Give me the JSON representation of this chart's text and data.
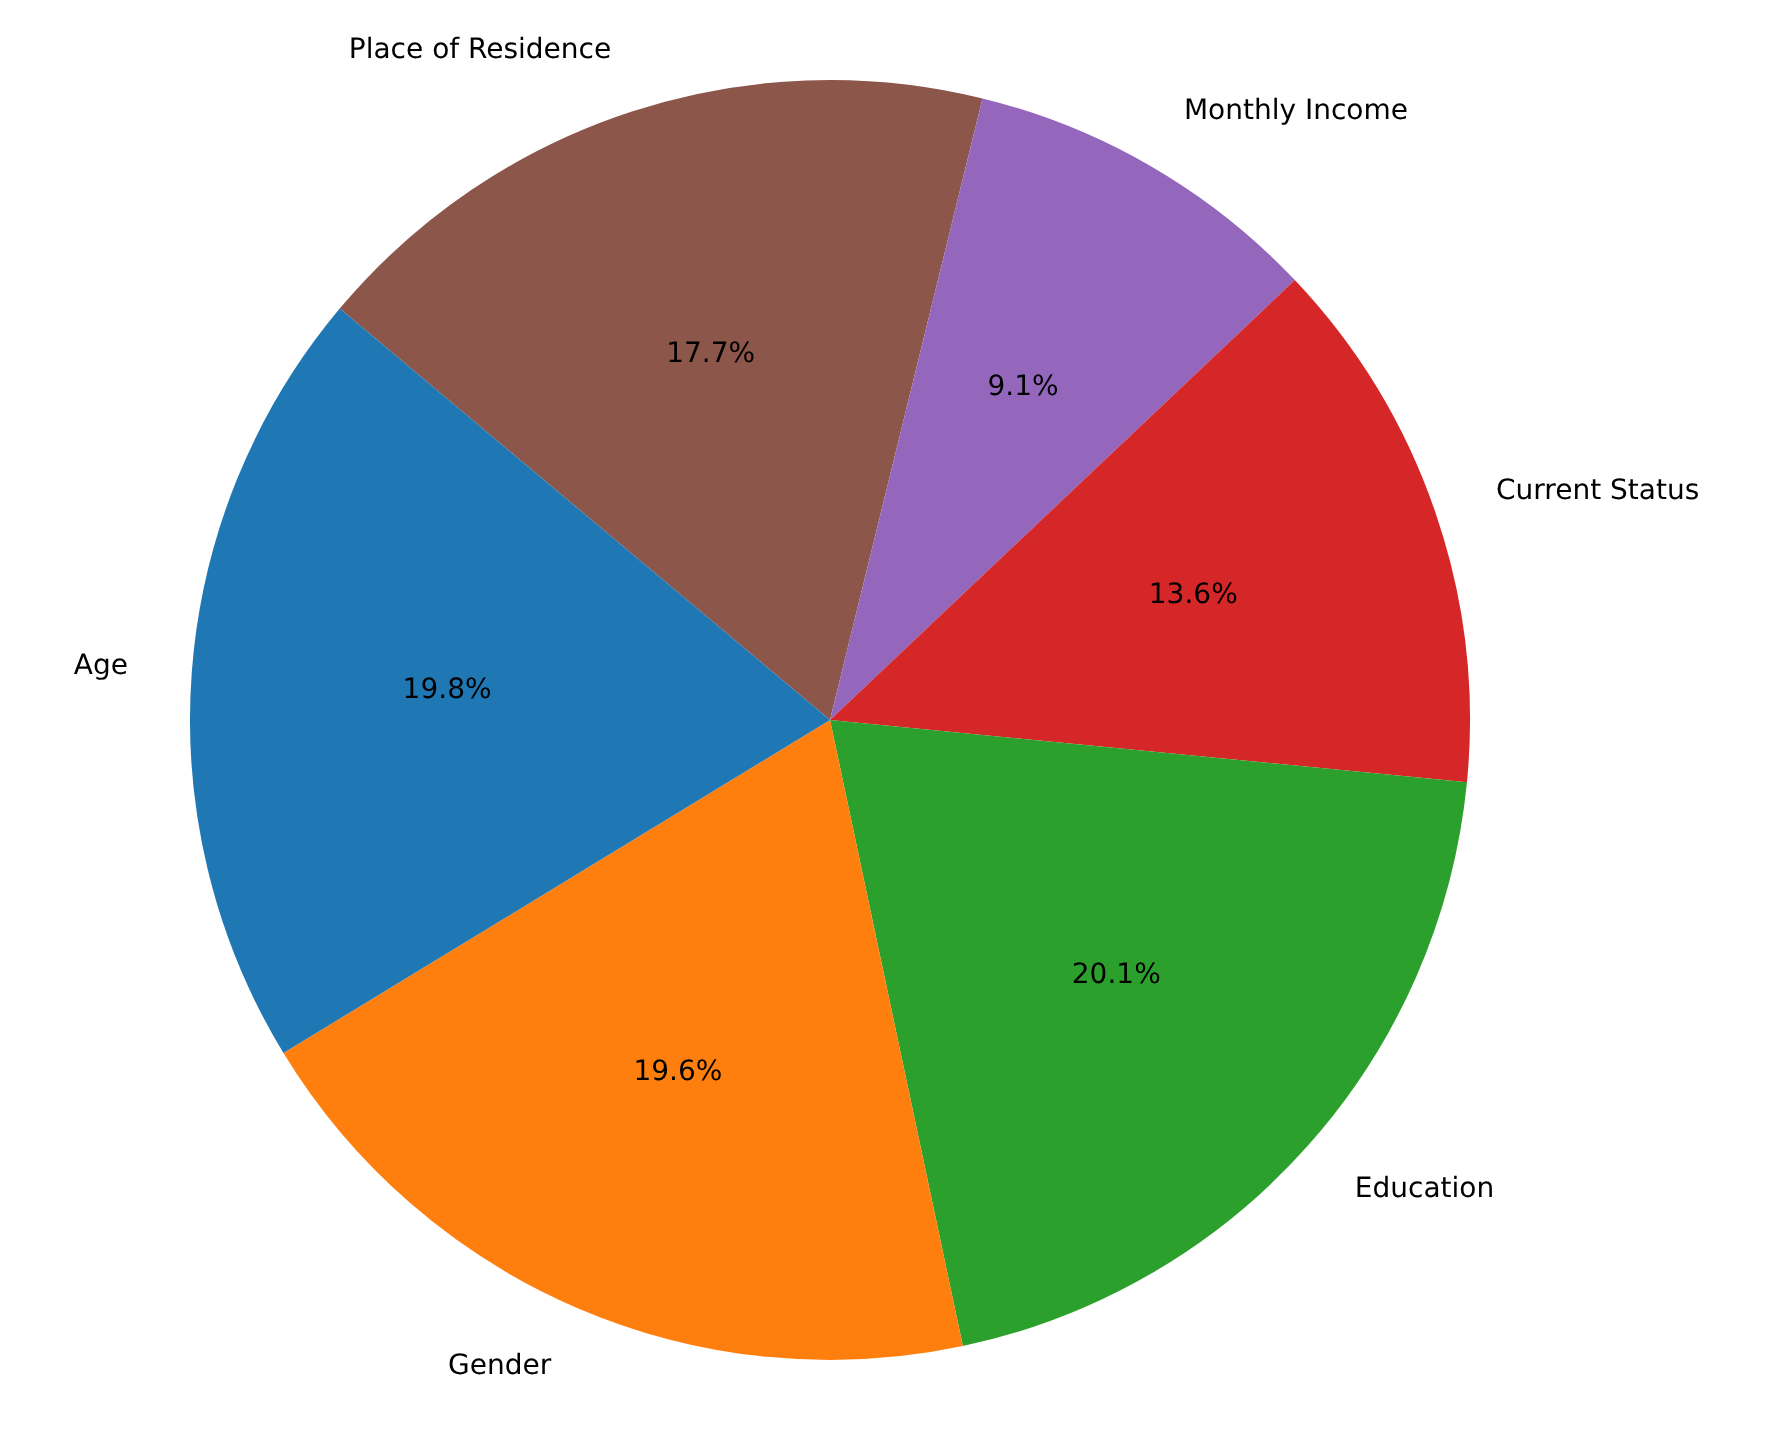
{
  "chart_data": {
    "type": "pie",
    "categories": [
      "Place of Residence",
      "Monthly Income",
      "Current Status",
      "Education",
      "Gender",
      "Age"
    ],
    "values": [
      17.7,
      9.1,
      13.6,
      20.1,
      19.6,
      19.8
    ],
    "colors": [
      "#8c564b",
      "#9467bd",
      "#d62728",
      "#2ca02c",
      "#ff7f0e",
      "#1f77b4"
    ],
    "value_labels": [
      "17.7%",
      "9.1%",
      "13.6%",
      "20.1%",
      "19.6%",
      "19.8%"
    ],
    "legend": false
  }
}
